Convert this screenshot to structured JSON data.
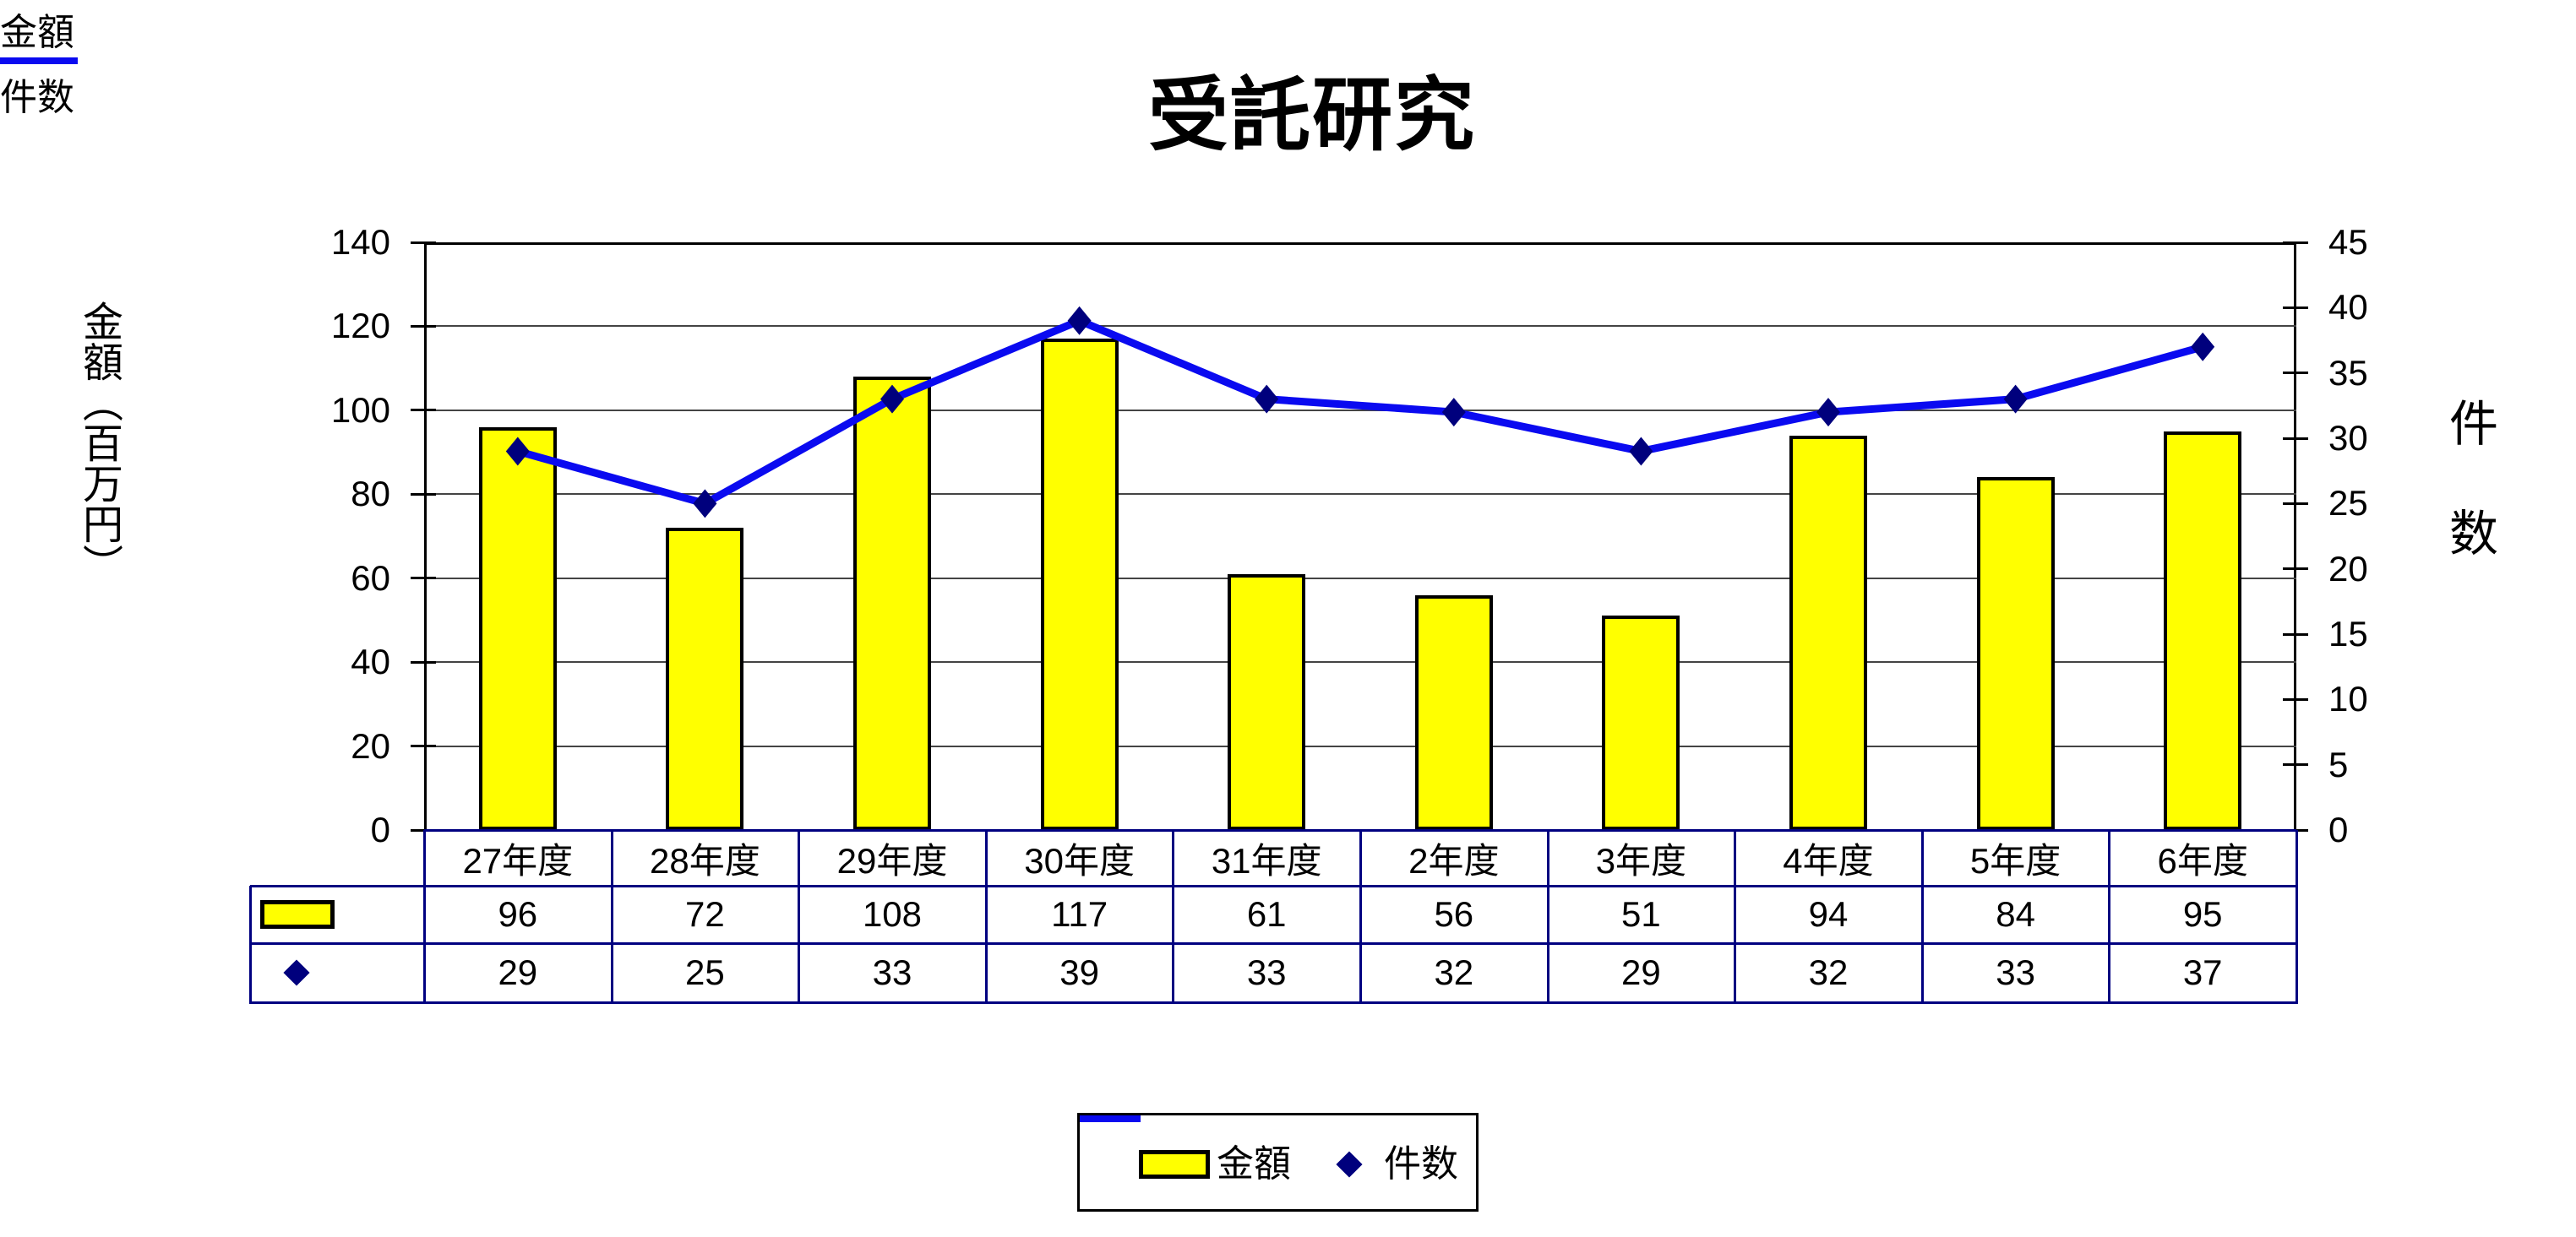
{
  "title": "受託研究",
  "chart_data": {
    "type": "combo bar+line",
    "title": "受託研究",
    "categories": [
      "27年度",
      "28年度",
      "29年度",
      "30年度",
      "31年度",
      "2年度",
      "3年度",
      "4年度",
      "5年度",
      "6年度"
    ],
    "series": [
      {
        "name": "金額",
        "type": "bar",
        "axis": "left",
        "values": [
          96,
          72,
          108,
          117,
          61,
          56,
          51,
          94,
          84,
          95
        ]
      },
      {
        "name": "件数",
        "type": "line",
        "axis": "right",
        "marker": "diamond",
        "values": [
          29,
          25,
          33,
          39,
          33,
          32,
          29,
          32,
          33,
          37
        ]
      }
    ],
    "left_axis": {
      "title": "金額（百万円）",
      "min": 0,
      "max": 140,
      "step": 20,
      "tick_labels": [
        "140",
        "120",
        "100",
        "80",
        "60",
        "40",
        "20",
        "0"
      ]
    },
    "right_axis": {
      "title": "件数",
      "min": 0,
      "max": 45,
      "step": 5,
      "tick_labels": [
        "45",
        "40",
        "35",
        "30",
        "25",
        "20",
        "15",
        "10",
        "5",
        "0"
      ]
    },
    "grid": "horizontal gridlines at left-axis major ticks",
    "legend_position": "bottom",
    "has_data_table": true
  },
  "legend": {
    "items": [
      {
        "label": "金額",
        "key": "bar"
      },
      {
        "label": "件数",
        "key": "line-diamond"
      }
    ]
  },
  "colors": {
    "background": "#FFFFFF",
    "text": "#000000",
    "bar_fill": "#FFFF00",
    "bar_border": "#000000",
    "line": "#0A0AF0",
    "marker": "#00007D",
    "grid": "#444444",
    "plot_border": "#000000",
    "table_border": "#000080"
  }
}
